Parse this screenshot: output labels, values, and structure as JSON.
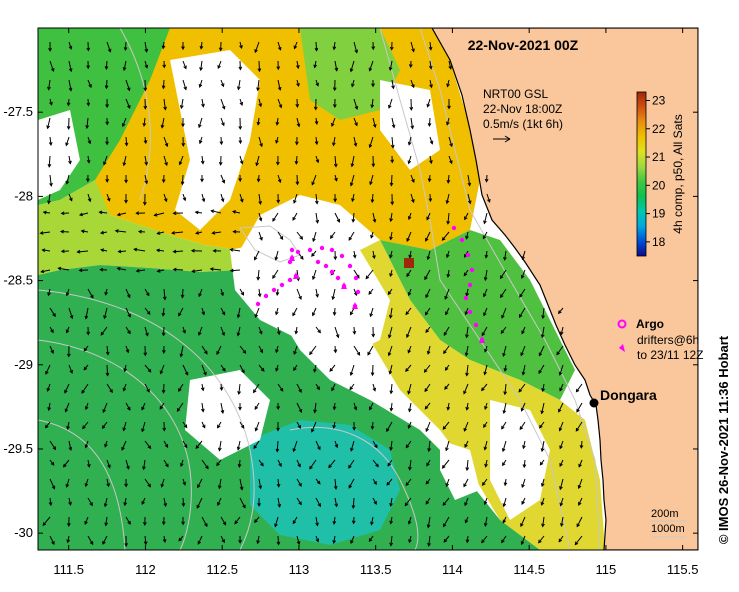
{
  "map": {
    "title": "22-Nov-2021 00Z",
    "current_source": "NRT00 GSL",
    "current_time": "22-Nov 18:00Z",
    "current_scale": "0.5m/s (1kt 6h)",
    "colorbar": {
      "label": "4h comp, p50, All Sats",
      "ticks": [
        23,
        22,
        21,
        20,
        19,
        18
      ],
      "min": 17.5,
      "max": 23.3,
      "colors": [
        "#0a0a8c",
        "#0050d8",
        "#00a8e0",
        "#00c8b0",
        "#10c050",
        "#40c840",
        "#a0d840",
        "#e0e020",
        "#f0c000",
        "#e89010",
        "#d05010",
        "#a02808"
      ]
    },
    "legend": {
      "argo_label": "Argo",
      "drifters_label_1": "drifters@6h",
      "drifters_label_2": "to 23/11 12Z",
      "argo_color": "#ff00ff"
    },
    "place": {
      "name": "Dongara",
      "lon": 114.93,
      "lat": -29.25
    },
    "isobaths": {
      "label_1": "200m",
      "label_2": "1000m"
    },
    "credit": "© IMOS 26-Nov-2021 11:36 Hobart",
    "x_ticks": [
      "111.5",
      "112",
      "112.5",
      "113",
      "113.5",
      "114",
      "114.5",
      "115",
      "115.5"
    ],
    "x_tick_values": [
      111.5,
      112,
      112.5,
      113,
      113.5,
      114,
      114.5,
      115,
      115.5
    ],
    "y_ticks": [
      "-27.5",
      "-28",
      "-28.5",
      "-29",
      "-29.5",
      "-30"
    ],
    "y_tick_values": [
      -27.5,
      -28,
      -28.5,
      -29,
      -29.5,
      -30
    ],
    "lon_range": [
      111.3,
      115.6
    ],
    "lat_range": [
      -30.1,
      -27.0
    ],
    "colors": {
      "land": "#f9c79b",
      "coast": "#000000",
      "isobath": "#c8c8c8",
      "drifter": "#ff00ff"
    }
  }
}
